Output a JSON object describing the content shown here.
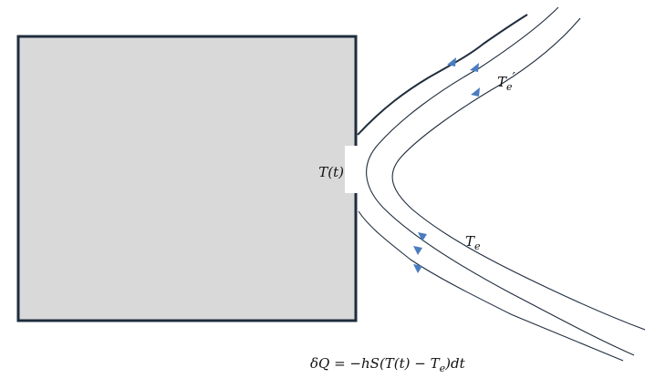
{
  "body_label": "T(t)",
  "flow_labels": [
    {
      "base": "T",
      "sub": "e",
      "prime": "′"
    },
    {
      "base": "T",
      "sub": "e"
    }
  ],
  "equation": {
    "before": "δQ = −hS(T(t) − T",
    "sub": "e",
    "after": ")dt"
  }
}
